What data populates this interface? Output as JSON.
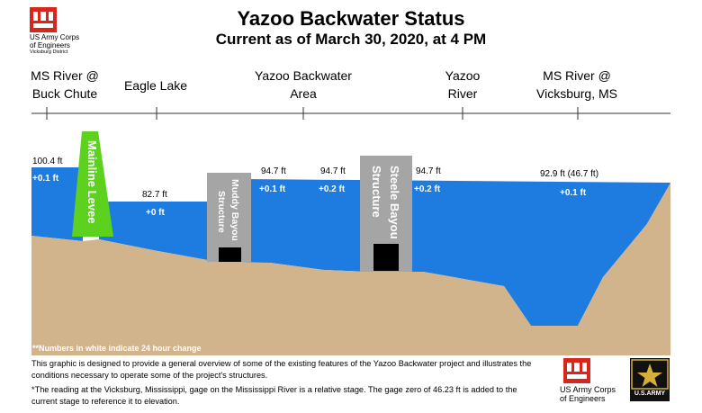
{
  "header": {
    "title": "Yazoo Backwater Status",
    "subtitle": "Current as of March 30, 2020, at 4 PM",
    "usace_line1": "US Army Corps",
    "usace_line2": "of Engineers",
    "usace_district": "Vicksburg District"
  },
  "locations": [
    {
      "line1": "MS River @",
      "line2": "Buck Chute"
    },
    {
      "line1": "Eagle Lake",
      "line2": ""
    },
    {
      "line1": "Yazoo Backwater",
      "line2": "Area"
    },
    {
      "line1": "Yazoo",
      "line2": "River"
    },
    {
      "line1": "MS River @",
      "line2": "Vicksburg, MS"
    }
  ],
  "readings": [
    {
      "stage": "100.4 ft",
      "change": "+0.1 ft"
    },
    {
      "stage": "82.7 ft",
      "change": "+0 ft"
    },
    {
      "stage": "94.7 ft",
      "change": "+0.1 ft"
    },
    {
      "stage": "94.7 ft",
      "change": "+0.2 ft"
    },
    {
      "stage": "94.7 ft",
      "change": "+0.2 ft"
    },
    {
      "stage": "92.9 ft (46.7 ft)",
      "change": "+0.1 ft"
    }
  ],
  "structures": {
    "levee": "Mainline Levee",
    "muddy_bayou": [
      "Muddy Bayou",
      "Structure"
    ],
    "steele_bayou": [
      "Steele Bayou",
      "Structure"
    ]
  },
  "legend_note": "**Numbers in white indicate 24 hour change",
  "footnote1": "This graphic is designed to provide a general overview of some of the existing features of the Yazoo Backwater project and illustrates the conditions necessary to operate some of the project's structures.",
  "footnote2": "*The reading at the Vicksburg, Mississippi, gage on the Mississippi River is a relative stage. The gage zero of 46.23 ft is added to the current stage to reference it to elevation.",
  "footer_logo": {
    "usace_line1": "US Army Corps",
    "usace_line2": "of Engineers",
    "army": "U.S.ARMY"
  },
  "colors": {
    "water": "#1e7be0",
    "ground": "#d2b48c",
    "levee": "#5cd21e",
    "structure": "#a5a5a5",
    "gate": "#000000",
    "logo_red": "#d9261c"
  }
}
